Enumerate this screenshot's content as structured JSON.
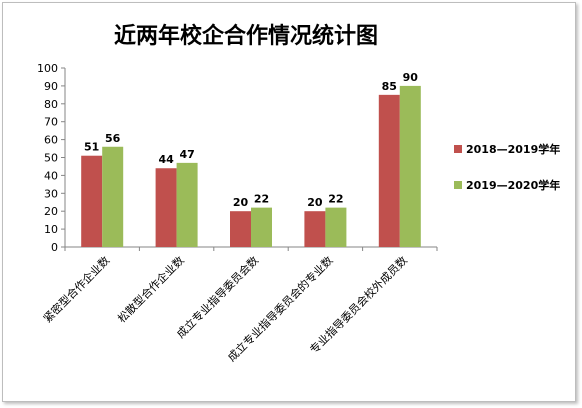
{
  "chart_data": {
    "type": "bar",
    "title": "近两年校企合作情况统计图",
    "categories": [
      "紧密型合作企业数",
      "松散型合作企业数",
      "成立专业指导委员会数",
      "成立专业指导委员会的专业数",
      "专业指导委员会校外成员数"
    ],
    "series": [
      {
        "name": "2018—2019学年",
        "values": [
          51,
          44,
          20,
          20,
          85
        ],
        "color": "#C0504D"
      },
      {
        "name": "2019—2020学年",
        "values": [
          56,
          47,
          22,
          22,
          90
        ],
        "color": "#9BBB59"
      }
    ],
    "ylim": [
      0,
      100
    ],
    "yticks": [
      0,
      10,
      20,
      30,
      40,
      50,
      60,
      70,
      80,
      90,
      100
    ],
    "grid": false,
    "legend_position": "right"
  }
}
